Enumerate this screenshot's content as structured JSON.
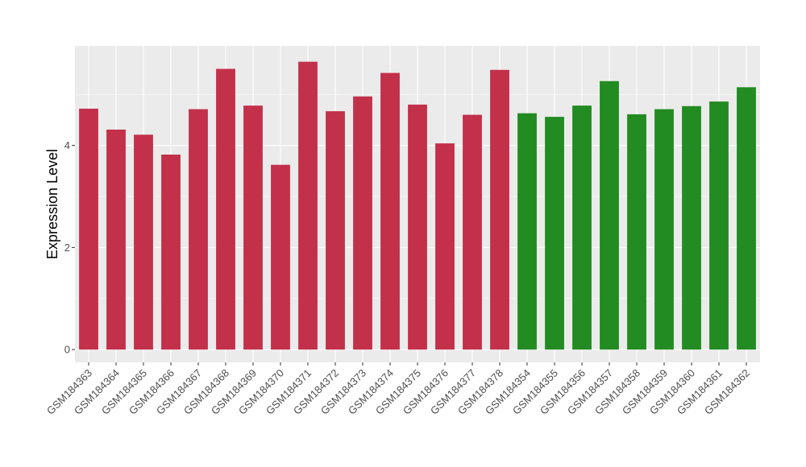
{
  "chart_data": {
    "type": "bar",
    "title": "",
    "xlabel": "",
    "ylabel": "Expression Level",
    "ylim": [
      -0.25,
      5.95
    ],
    "yticks": [
      0,
      2,
      4
    ],
    "grid": true,
    "legend": "none",
    "panel_background": "#ebebeb",
    "gridline_color": "#ffffff",
    "categories": [
      "GSM184363",
      "GSM184364",
      "GSM184365",
      "GSM184366",
      "GSM184367",
      "GSM184368",
      "GSM184369",
      "GSM184370",
      "GSM184371",
      "GSM184372",
      "GSM184373",
      "GSM184374",
      "GSM184375",
      "GSM184376",
      "GSM184377",
      "GSM184378",
      "GSM184354",
      "GSM184355",
      "GSM184356",
      "GSM184357",
      "GSM184358",
      "GSM184359",
      "GSM184360",
      "GSM184361",
      "GSM184362"
    ],
    "values": [
      4.72,
      4.31,
      4.21,
      3.82,
      4.71,
      5.5,
      4.78,
      3.62,
      5.64,
      4.67,
      4.96,
      5.42,
      4.8,
      4.04,
      4.6,
      5.48,
      4.63,
      4.56,
      4.78,
      5.26,
      4.61,
      4.71,
      4.77,
      4.86,
      5.14
    ],
    "bar_colors": [
      "#c3304a",
      "#c3304a",
      "#c3304a",
      "#c3304a",
      "#c3304a",
      "#c3304a",
      "#c3304a",
      "#c3304a",
      "#c3304a",
      "#c3304a",
      "#c3304a",
      "#c3304a",
      "#c3304a",
      "#c3304a",
      "#c3304a",
      "#c3304a",
      "#228b22",
      "#228b22",
      "#228b22",
      "#228b22",
      "#228b22",
      "#228b22",
      "#228b22",
      "#228b22",
      "#228b22"
    ]
  }
}
